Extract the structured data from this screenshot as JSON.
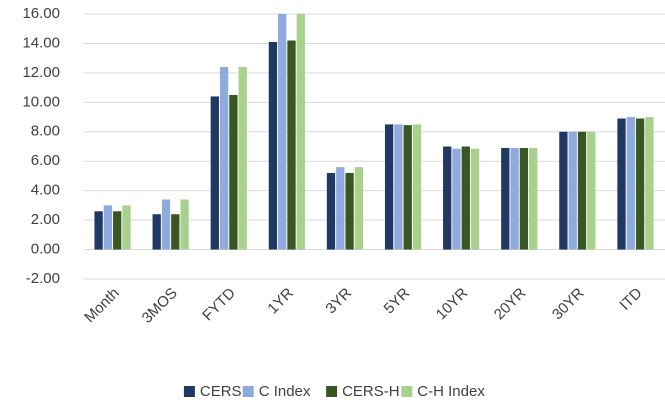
{
  "chart_data": {
    "type": "bar",
    "categories": [
      "Month",
      "3MOS",
      "FYTD",
      "1YR",
      "3YR",
      "5YR",
      "10YR",
      "20YR",
      "30YR",
      "ITD"
    ],
    "series": [
      {
        "name": "CERS",
        "color": "#203864",
        "values": [
          2.6,
          2.4,
          10.4,
          14.1,
          5.2,
          8.5,
          7.0,
          6.9,
          8.0,
          8.9
        ]
      },
      {
        "name": "C Index",
        "color": "#8faadc",
        "values": [
          3.0,
          3.4,
          12.4,
          16.0,
          5.6,
          8.5,
          6.85,
          6.9,
          8.0,
          9.0
        ]
      },
      {
        "name": "CERS-H",
        "color": "#385723",
        "values": [
          2.6,
          2.4,
          10.5,
          14.2,
          5.2,
          8.45,
          7.0,
          6.9,
          8.0,
          8.9
        ]
      },
      {
        "name": "C-H Index",
        "color": "#a9d18e",
        "values": [
          3.0,
          3.4,
          12.4,
          16.0,
          5.6,
          8.5,
          6.85,
          6.9,
          8.0,
          9.0
        ]
      }
    ],
    "ylim": [
      -2,
      16
    ],
    "yticks": [
      {
        "value": -2,
        "label": "-2.00"
      },
      {
        "value": 0,
        "label": "0.00"
      },
      {
        "value": 2,
        "label": "2.00"
      },
      {
        "value": 4,
        "label": "4.00"
      },
      {
        "value": 6,
        "label": "6.00"
      },
      {
        "value": 8,
        "label": "8.00"
      },
      {
        "value": 10,
        "label": "10.00"
      },
      {
        "value": 12,
        "label": "12.00"
      },
      {
        "value": 14,
        "label": "14.00"
      },
      {
        "value": 16,
        "label": "16.00"
      }
    ],
    "grid": true,
    "legend": "bottom"
  }
}
